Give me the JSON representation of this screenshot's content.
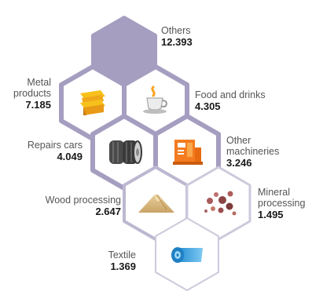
{
  "colors": {
    "hex_outline": "#a59ec0",
    "hex_fill": "#ffffff",
    "hex_filled": "#a59ec0",
    "hex_faded_outline": "#cdc9dc"
  },
  "categories": [
    {
      "label_lines": [
        "Others"
      ],
      "value": "12.393",
      "icon": "none"
    },
    {
      "label_lines": [
        "Metal",
        "products"
      ],
      "value": "7.185",
      "icon": "metal-sheets-icon"
    },
    {
      "label_lines": [
        "Food and drinks"
      ],
      "value": "4.305",
      "icon": "coffee-cup-icon"
    },
    {
      "label_lines": [
        "Repairs cars"
      ],
      "value": "4.049",
      "icon": "tires-icon"
    },
    {
      "label_lines": [
        "Other",
        "machineries"
      ],
      "value": "3.246",
      "icon": "machinery-icon"
    },
    {
      "label_lines": [
        "Wood processing"
      ],
      "value": "2.647",
      "icon": "sawdust-pile-icon"
    },
    {
      "label_lines": [
        "Mineral",
        "processing"
      ],
      "value": "1.495",
      "icon": "mineral-rocks-icon"
    },
    {
      "label_lines": [
        "Textile"
      ],
      "value": "1.369",
      "icon": "fabric-roll-icon"
    }
  ]
}
